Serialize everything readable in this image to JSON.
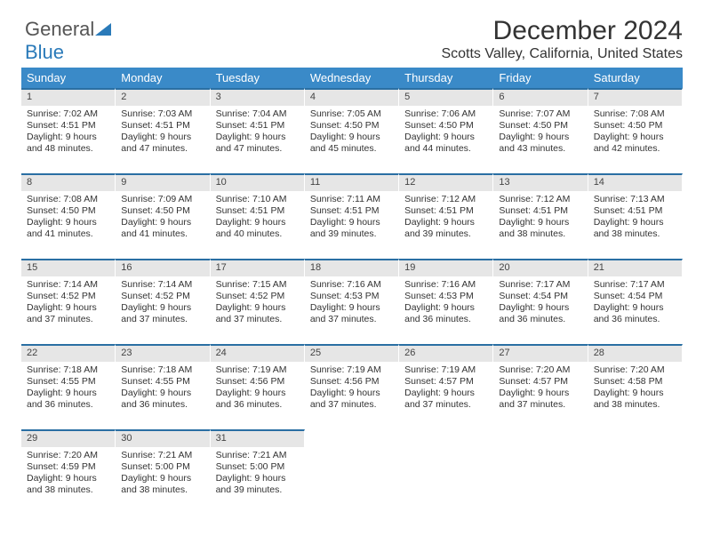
{
  "brand": {
    "part1": "General",
    "part2": "Blue"
  },
  "header": {
    "title": "December 2024",
    "location": "Scotts Valley, California, United States"
  },
  "colors": {
    "header_bg": "#3a8ac8",
    "daynum_bg": "#e6e6e6",
    "day_border_top": "#2a6fa3",
    "text": "#333333",
    "background": "#ffffff"
  },
  "calendar": {
    "type": "table",
    "columns": [
      "Sunday",
      "Monday",
      "Tuesday",
      "Wednesday",
      "Thursday",
      "Friday",
      "Saturday"
    ],
    "start_offset": 0,
    "days": [
      {
        "n": "1",
        "sr": "Sunrise: 7:02 AM",
        "ss": "Sunset: 4:51 PM",
        "d1": "Daylight: 9 hours",
        "d2": "and 48 minutes."
      },
      {
        "n": "2",
        "sr": "Sunrise: 7:03 AM",
        "ss": "Sunset: 4:51 PM",
        "d1": "Daylight: 9 hours",
        "d2": "and 47 minutes."
      },
      {
        "n": "3",
        "sr": "Sunrise: 7:04 AM",
        "ss": "Sunset: 4:51 PM",
        "d1": "Daylight: 9 hours",
        "d2": "and 47 minutes."
      },
      {
        "n": "4",
        "sr": "Sunrise: 7:05 AM",
        "ss": "Sunset: 4:50 PM",
        "d1": "Daylight: 9 hours",
        "d2": "and 45 minutes."
      },
      {
        "n": "5",
        "sr": "Sunrise: 7:06 AM",
        "ss": "Sunset: 4:50 PM",
        "d1": "Daylight: 9 hours",
        "d2": "and 44 minutes."
      },
      {
        "n": "6",
        "sr": "Sunrise: 7:07 AM",
        "ss": "Sunset: 4:50 PM",
        "d1": "Daylight: 9 hours",
        "d2": "and 43 minutes."
      },
      {
        "n": "7",
        "sr": "Sunrise: 7:08 AM",
        "ss": "Sunset: 4:50 PM",
        "d1": "Daylight: 9 hours",
        "d2": "and 42 minutes."
      },
      {
        "n": "8",
        "sr": "Sunrise: 7:08 AM",
        "ss": "Sunset: 4:50 PM",
        "d1": "Daylight: 9 hours",
        "d2": "and 41 minutes."
      },
      {
        "n": "9",
        "sr": "Sunrise: 7:09 AM",
        "ss": "Sunset: 4:50 PM",
        "d1": "Daylight: 9 hours",
        "d2": "and 41 minutes."
      },
      {
        "n": "10",
        "sr": "Sunrise: 7:10 AM",
        "ss": "Sunset: 4:51 PM",
        "d1": "Daylight: 9 hours",
        "d2": "and 40 minutes."
      },
      {
        "n": "11",
        "sr": "Sunrise: 7:11 AM",
        "ss": "Sunset: 4:51 PM",
        "d1": "Daylight: 9 hours",
        "d2": "and 39 minutes."
      },
      {
        "n": "12",
        "sr": "Sunrise: 7:12 AM",
        "ss": "Sunset: 4:51 PM",
        "d1": "Daylight: 9 hours",
        "d2": "and 39 minutes."
      },
      {
        "n": "13",
        "sr": "Sunrise: 7:12 AM",
        "ss": "Sunset: 4:51 PM",
        "d1": "Daylight: 9 hours",
        "d2": "and 38 minutes."
      },
      {
        "n": "14",
        "sr": "Sunrise: 7:13 AM",
        "ss": "Sunset: 4:51 PM",
        "d1": "Daylight: 9 hours",
        "d2": "and 38 minutes."
      },
      {
        "n": "15",
        "sr": "Sunrise: 7:14 AM",
        "ss": "Sunset: 4:52 PM",
        "d1": "Daylight: 9 hours",
        "d2": "and 37 minutes."
      },
      {
        "n": "16",
        "sr": "Sunrise: 7:14 AM",
        "ss": "Sunset: 4:52 PM",
        "d1": "Daylight: 9 hours",
        "d2": "and 37 minutes."
      },
      {
        "n": "17",
        "sr": "Sunrise: 7:15 AM",
        "ss": "Sunset: 4:52 PM",
        "d1": "Daylight: 9 hours",
        "d2": "and 37 minutes."
      },
      {
        "n": "18",
        "sr": "Sunrise: 7:16 AM",
        "ss": "Sunset: 4:53 PM",
        "d1": "Daylight: 9 hours",
        "d2": "and 37 minutes."
      },
      {
        "n": "19",
        "sr": "Sunrise: 7:16 AM",
        "ss": "Sunset: 4:53 PM",
        "d1": "Daylight: 9 hours",
        "d2": "and 36 minutes."
      },
      {
        "n": "20",
        "sr": "Sunrise: 7:17 AM",
        "ss": "Sunset: 4:54 PM",
        "d1": "Daylight: 9 hours",
        "d2": "and 36 minutes."
      },
      {
        "n": "21",
        "sr": "Sunrise: 7:17 AM",
        "ss": "Sunset: 4:54 PM",
        "d1": "Daylight: 9 hours",
        "d2": "and 36 minutes."
      },
      {
        "n": "22",
        "sr": "Sunrise: 7:18 AM",
        "ss": "Sunset: 4:55 PM",
        "d1": "Daylight: 9 hours",
        "d2": "and 36 minutes."
      },
      {
        "n": "23",
        "sr": "Sunrise: 7:18 AM",
        "ss": "Sunset: 4:55 PM",
        "d1": "Daylight: 9 hours",
        "d2": "and 36 minutes."
      },
      {
        "n": "24",
        "sr": "Sunrise: 7:19 AM",
        "ss": "Sunset: 4:56 PM",
        "d1": "Daylight: 9 hours",
        "d2": "and 36 minutes."
      },
      {
        "n": "25",
        "sr": "Sunrise: 7:19 AM",
        "ss": "Sunset: 4:56 PM",
        "d1": "Daylight: 9 hours",
        "d2": "and 37 minutes."
      },
      {
        "n": "26",
        "sr": "Sunrise: 7:19 AM",
        "ss": "Sunset: 4:57 PM",
        "d1": "Daylight: 9 hours",
        "d2": "and 37 minutes."
      },
      {
        "n": "27",
        "sr": "Sunrise: 7:20 AM",
        "ss": "Sunset: 4:57 PM",
        "d1": "Daylight: 9 hours",
        "d2": "and 37 minutes."
      },
      {
        "n": "28",
        "sr": "Sunrise: 7:20 AM",
        "ss": "Sunset: 4:58 PM",
        "d1": "Daylight: 9 hours",
        "d2": "and 38 minutes."
      },
      {
        "n": "29",
        "sr": "Sunrise: 7:20 AM",
        "ss": "Sunset: 4:59 PM",
        "d1": "Daylight: 9 hours",
        "d2": "and 38 minutes."
      },
      {
        "n": "30",
        "sr": "Sunrise: 7:21 AM",
        "ss": "Sunset: 5:00 PM",
        "d1": "Daylight: 9 hours",
        "d2": "and 38 minutes."
      },
      {
        "n": "31",
        "sr": "Sunrise: 7:21 AM",
        "ss": "Sunset: 5:00 PM",
        "d1": "Daylight: 9 hours",
        "d2": "and 39 minutes."
      }
    ]
  }
}
